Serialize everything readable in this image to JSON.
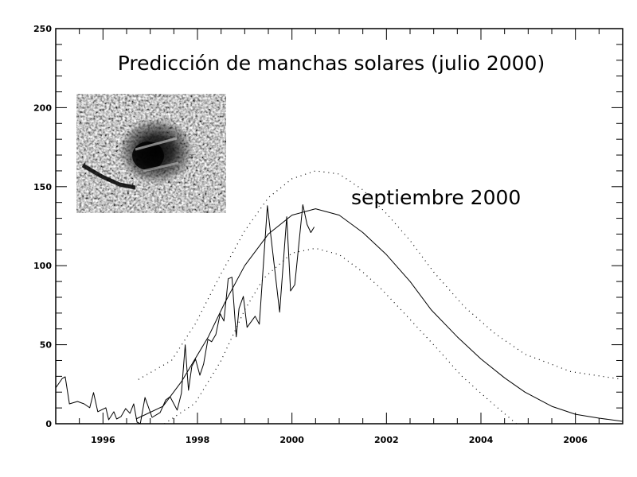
{
  "chart_data": {
    "type": "line",
    "title": "Predicción de manchas solares (julio 2000)",
    "annotation": "septiembre 2000",
    "xlabel": "",
    "ylabel": "",
    "xlim": [
      1995,
      2007
    ],
    "ylim": [
      0,
      250
    ],
    "x_ticks": [
      1996,
      1998,
      2000,
      2002,
      2004,
      2006
    ],
    "y_ticks": [
      0,
      50,
      100,
      150,
      200,
      250
    ],
    "grid": false,
    "legend": "none",
    "inset_image": "sunspot-photo",
    "series": [
      {
        "style": "solid-jagged",
        "points": [
          [
            1995.0,
            22.7
          ],
          [
            1995.14,
            28.7
          ],
          [
            1995.2,
            29.7
          ],
          [
            1995.29,
            12.6
          ],
          [
            1995.46,
            14.1
          ],
          [
            1995.6,
            12.6
          ],
          [
            1995.72,
            10.1
          ],
          [
            1995.8,
            19.7
          ],
          [
            1995.89,
            7.6
          ],
          [
            1996.06,
            10.1
          ],
          [
            1996.12,
            2.5
          ],
          [
            1996.23,
            7.6
          ],
          [
            1996.29,
            3.0
          ],
          [
            1996.38,
            4.5
          ],
          [
            1996.48,
            9.6
          ],
          [
            1996.57,
            6.6
          ],
          [
            1996.65,
            12.6
          ],
          [
            1996.72,
            1.0
          ],
          [
            1996.79,
            0
          ],
          [
            1996.89,
            16.6
          ],
          [
            1997.04,
            4.0
          ],
          [
            1997.21,
            7.1
          ],
          [
            1997.33,
            15.1
          ],
          [
            1997.42,
            17.1
          ],
          [
            1997.57,
            8.6
          ],
          [
            1997.66,
            19.2
          ],
          [
            1997.74,
            49.9
          ],
          [
            1997.81,
            21.2
          ],
          [
            1997.88,
            36.3
          ],
          [
            1997.96,
            40.8
          ],
          [
            1998.05,
            30.7
          ],
          [
            1998.13,
            37.8
          ],
          [
            1998.22,
            53.4
          ],
          [
            1998.3,
            51.9
          ],
          [
            1998.39,
            56.5
          ],
          [
            1998.48,
            69.6
          ],
          [
            1998.56,
            65.0
          ],
          [
            1998.65,
            91.7
          ],
          [
            1998.73,
            92.7
          ],
          [
            1998.82,
            55
          ],
          [
            1998.88,
            73
          ],
          [
            1998.97,
            80.6
          ],
          [
            1999.05,
            61
          ],
          [
            1999.22,
            68
          ],
          [
            1999.31,
            63
          ],
          [
            1999.48,
            138
          ],
          [
            1999.74,
            70.6
          ],
          [
            1999.89,
            131
          ],
          [
            1999.97,
            84
          ],
          [
            2000.06,
            88
          ],
          [
            2000.23,
            138.6
          ],
          [
            2000.32,
            126
          ],
          [
            2000.4,
            121
          ],
          [
            2000.47,
            124.5
          ]
        ]
      },
      {
        "style": "solid-smooth",
        "points": [
          [
            1996.7,
            3
          ],
          [
            1997.27,
            11
          ],
          [
            1997.67,
            27
          ],
          [
            1998.23,
            55
          ],
          [
            1998.57,
            76
          ],
          [
            1999.0,
            100
          ],
          [
            1999.5,
            120
          ],
          [
            2000.0,
            132
          ],
          [
            2000.5,
            136
          ],
          [
            2001.0,
            132
          ],
          [
            2001.5,
            121
          ],
          [
            2002.0,
            107
          ],
          [
            2002.5,
            90
          ],
          [
            2002.95,
            72
          ],
          [
            2003.5,
            55
          ],
          [
            2004.0,
            41
          ],
          [
            2004.5,
            29
          ],
          [
            2004.93,
            20
          ],
          [
            2005.5,
            11
          ],
          [
            2006.0,
            6
          ],
          [
            2006.5,
            3.5
          ],
          [
            2007.0,
            1.5
          ]
        ]
      },
      {
        "style": "dotted-upper",
        "points": [
          [
            1996.75,
            28
          ],
          [
            1997.45,
            40
          ],
          [
            1997.95,
            63
          ],
          [
            1998.5,
            95
          ],
          [
            1999.0,
            122
          ],
          [
            1999.5,
            143
          ],
          [
            2000.0,
            155
          ],
          [
            2000.5,
            160
          ],
          [
            2001.0,
            158
          ],
          [
            2001.5,
            148
          ],
          [
            2002.0,
            133
          ],
          [
            2002.5,
            116
          ],
          [
            2003.0,
            96
          ],
          [
            2003.65,
            74
          ],
          [
            2004.3,
            57
          ],
          [
            2004.93,
            44
          ],
          [
            2005.9,
            33
          ],
          [
            2007.0,
            28
          ]
        ]
      },
      {
        "style": "dotted-lower",
        "points": [
          [
            1997.3,
            0
          ],
          [
            1997.95,
            13
          ],
          [
            1998.5,
            40
          ],
          [
            1999.0,
            72
          ],
          [
            1999.4,
            92
          ],
          [
            2000.0,
            108
          ],
          [
            2000.5,
            111
          ],
          [
            2001.0,
            107
          ],
          [
            2001.5,
            96
          ],
          [
            2001.9,
            85
          ],
          [
            2002.5,
            66
          ],
          [
            2003.06,
            48
          ],
          [
            2003.6,
            30
          ],
          [
            2004.2,
            14
          ],
          [
            2004.75,
            0
          ]
        ]
      }
    ]
  }
}
